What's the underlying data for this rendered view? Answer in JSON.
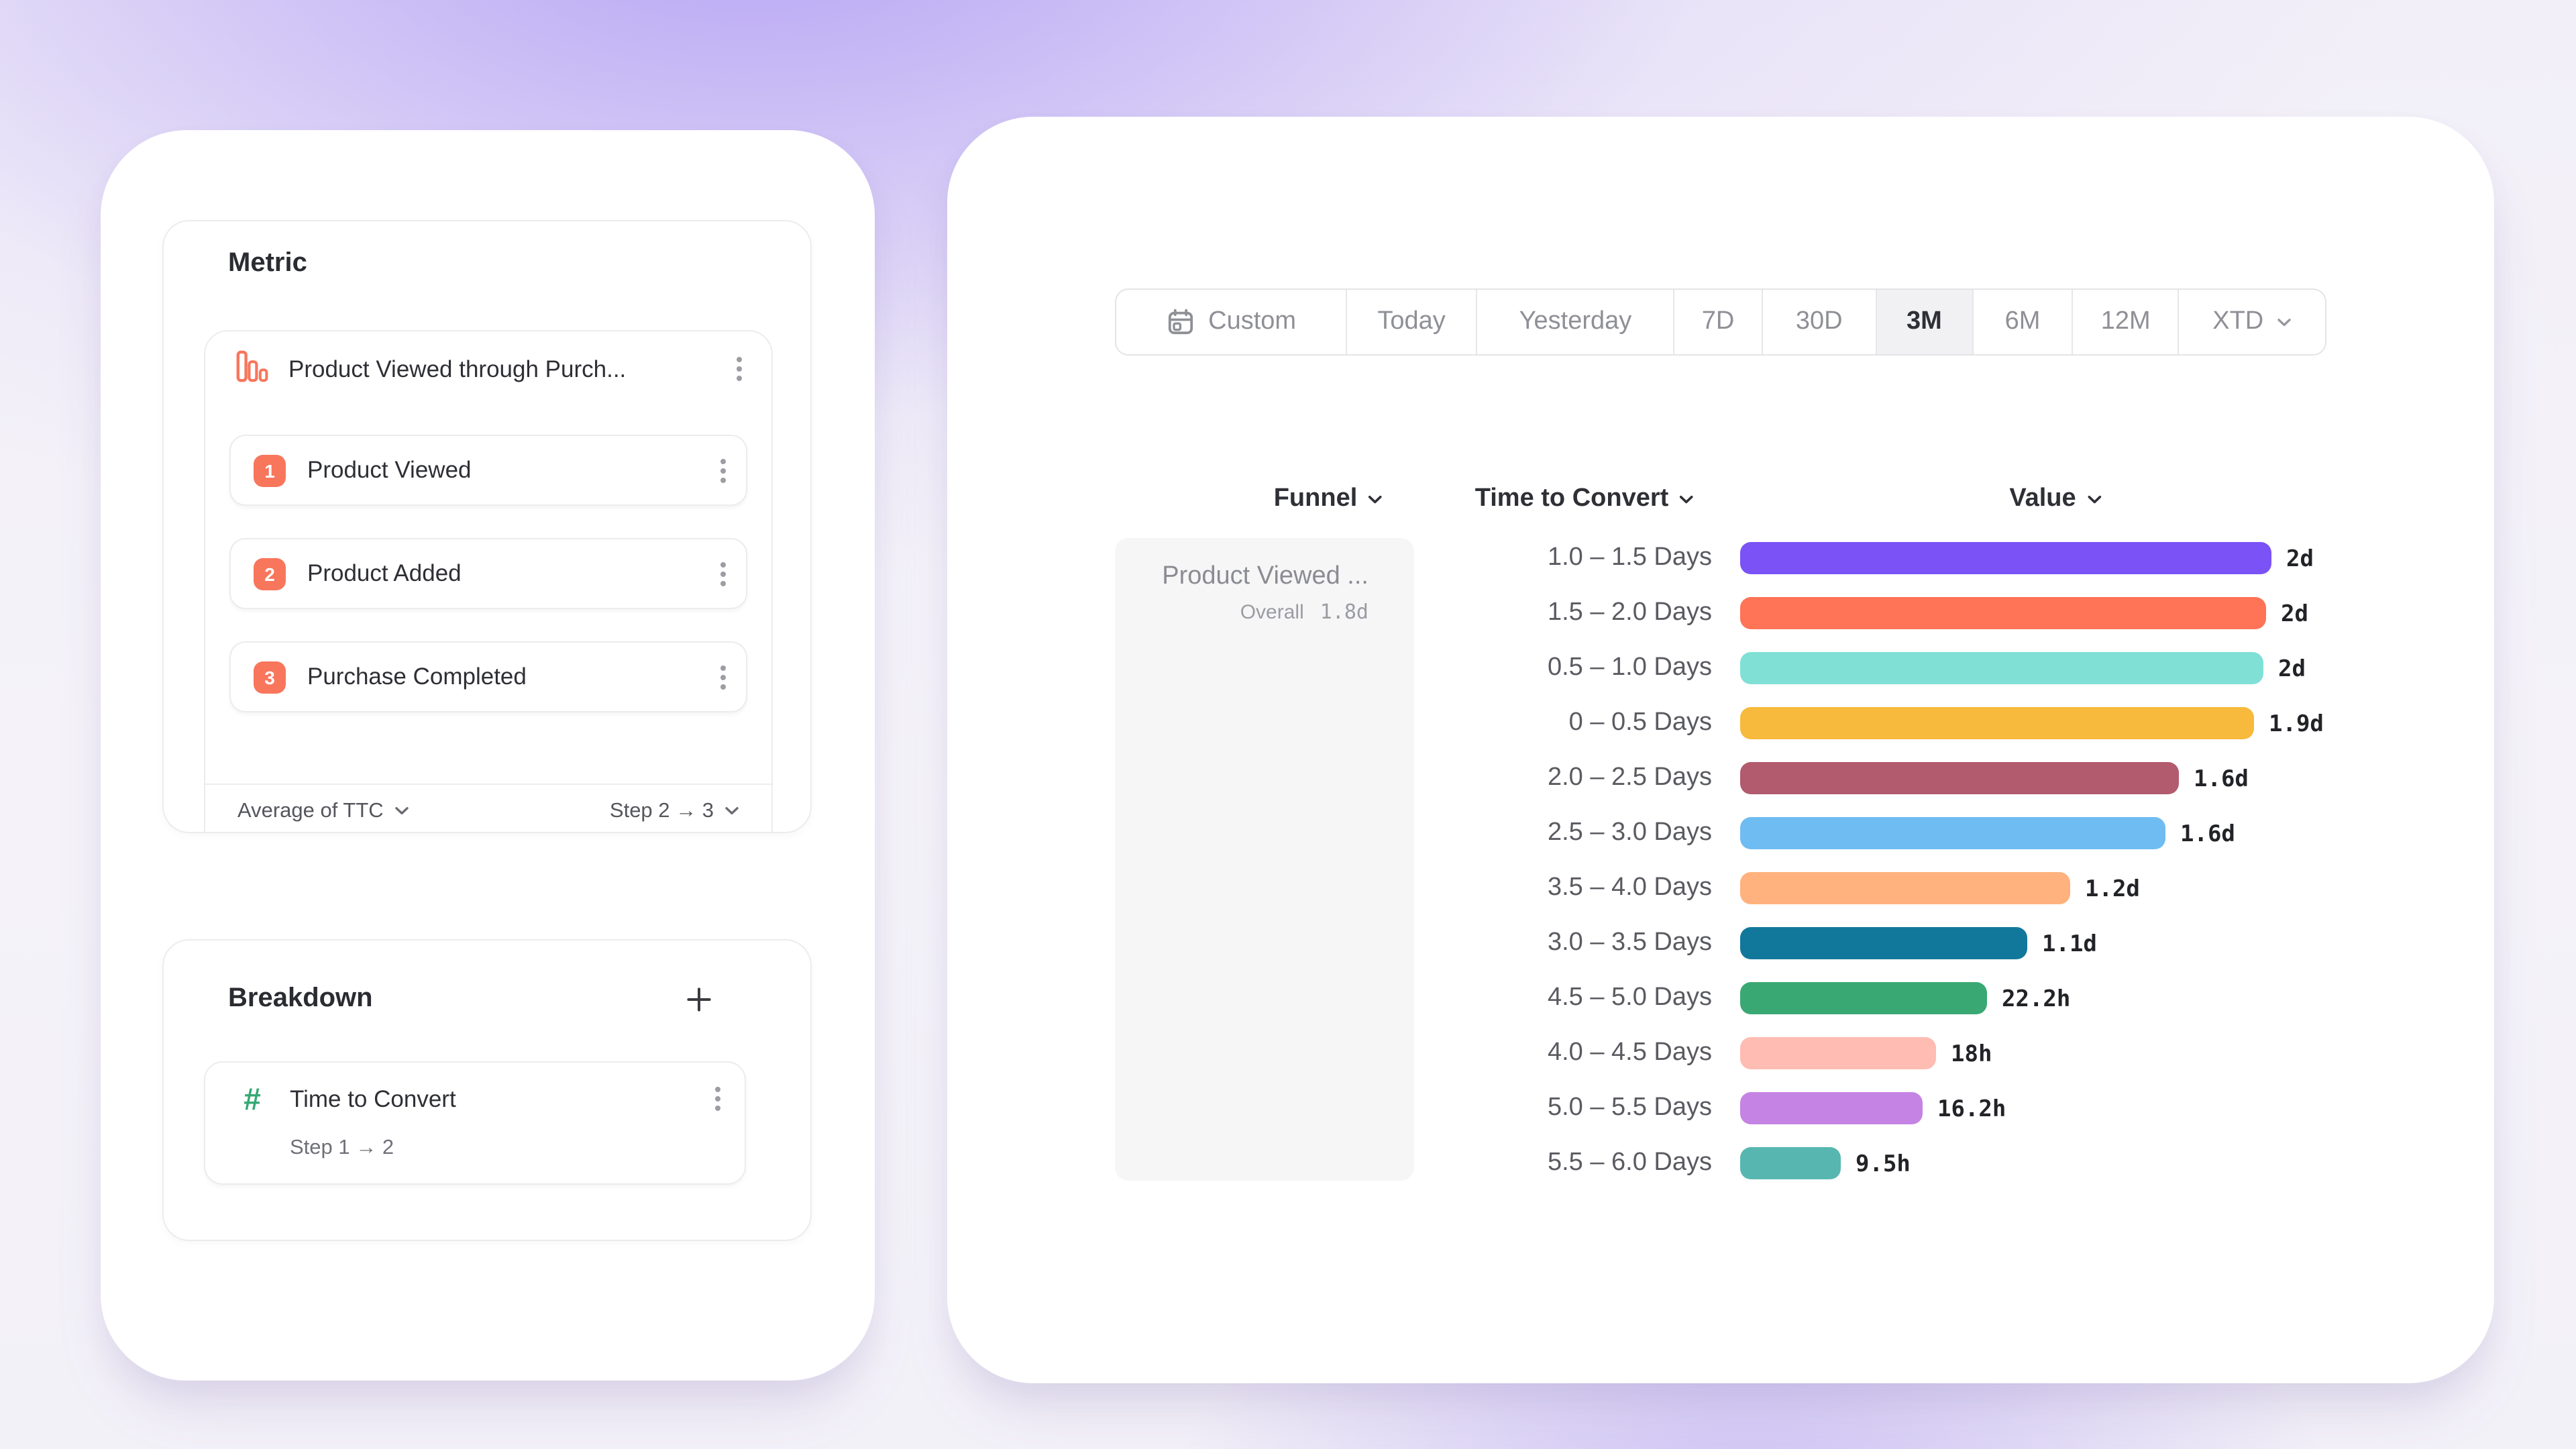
{
  "colors": {
    "accent_orange": "#F8765C",
    "accent_green": "#35A873",
    "selected_tab_bg": "#F1F1F3",
    "panel_border": "#ECECEE",
    "funnel_cell_bg": "#F6F6F7"
  },
  "metric_panel": {
    "title": "Metric",
    "metric": {
      "name": "Product Viewed through Purch...",
      "steps": [
        {
          "number": "1",
          "label": "Product Viewed"
        },
        {
          "number": "2",
          "label": "Product Added"
        },
        {
          "number": "3",
          "label": "Purchase Completed"
        }
      ],
      "aggregation": "Average of TTC",
      "step_range": "Step 2 → 3"
    }
  },
  "breakdown_panel": {
    "title": "Breakdown",
    "item": {
      "name": "Time to Convert",
      "step_range": "Step 1 → 2"
    }
  },
  "date_picker": {
    "tabs": [
      {
        "label": "Custom",
        "has_calendar_icon": true,
        "selected": false
      },
      {
        "label": "Today",
        "selected": false
      },
      {
        "label": "Yesterday",
        "selected": false
      },
      {
        "label": "7D",
        "selected": false
      },
      {
        "label": "30D",
        "selected": false
      },
      {
        "label": "3M",
        "selected": true
      },
      {
        "label": "6M",
        "selected": false
      },
      {
        "label": "12M",
        "selected": false
      },
      {
        "label": "XTD",
        "has_chevron": true,
        "selected": false
      }
    ]
  },
  "table": {
    "columns": [
      {
        "label": "Funnel"
      },
      {
        "label": "Time to Convert"
      },
      {
        "label": "Value"
      }
    ],
    "funnel_row": {
      "name": "Product Viewed ...",
      "overall_label": "Overall",
      "overall_value": "1.8d"
    }
  },
  "chart_data": {
    "type": "bar",
    "orientation": "horizontal",
    "title": "Time to Convert breakdown",
    "categories": [
      "1.0 – 1.5 Days",
      "1.5 – 2.0 Days",
      "0.5 – 1.0 Days",
      "0 – 0.5 Days",
      "2.0 – 2.5 Days",
      "2.5 – 3.0 Days",
      "3.5 – 4.0 Days",
      "3.0 – 3.5 Days",
      "4.5 – 5.0 Days",
      "4.0 – 4.5 Days",
      "5.0 – 5.5 Days",
      "5.5 – 6.0 Days"
    ],
    "values": [
      "2d",
      "2d",
      "2d",
      "1.9d",
      "1.6d",
      "1.6d",
      "1.2d",
      "1.1d",
      "22.2h",
      "18h",
      "16.2h",
      "9.5h"
    ],
    "values_in_days": [
      2.0,
      2.0,
      1.97,
      1.9,
      1.65,
      1.6,
      1.24,
      1.08,
      0.93,
      0.75,
      0.68,
      0.4
    ],
    "bar_fractions": [
      1.0,
      0.99,
      0.985,
      0.968,
      0.826,
      0.8,
      0.62,
      0.54,
      0.464,
      0.369,
      0.344,
      0.189
    ],
    "bar_colors": [
      "#7A52F5",
      "#FF7357",
      "#80E0D5",
      "#F7BA3C",
      "#B25A6E",
      "#6FBCF2",
      "#FFB27D",
      "#12789B",
      "#3AA873",
      "#FFBCB2",
      "#C583E3",
      "#57B7B0"
    ],
    "value_axis_max_days": 2,
    "grid": false,
    "legend": false
  }
}
